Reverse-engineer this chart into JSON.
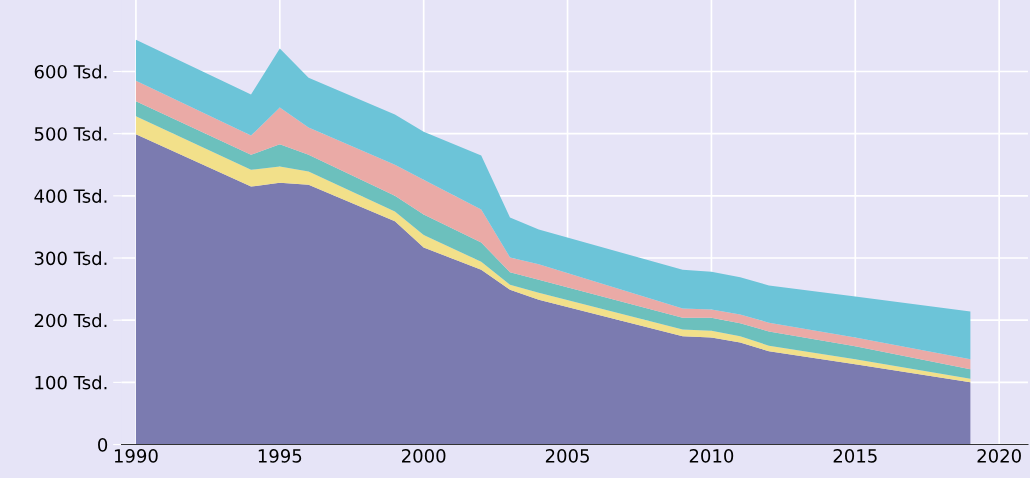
{
  "chart_data": {
    "type": "area",
    "stacked": true,
    "x": [
      1990,
      1994,
      1995,
      1996,
      1999,
      2000,
      2002,
      2003,
      2004,
      2009,
      2010,
      2011,
      2012,
      2015,
      2019
    ],
    "series": [
      {
        "color": "#7b7bb0",
        "values": [
          499,
          415,
          421,
          418,
          359,
          317,
          281,
          249,
          233,
          174,
          172,
          164,
          150,
          129,
          100
        ]
      },
      {
        "color": "#f2e08a",
        "values": [
          29,
          27,
          26,
          21,
          16,
          20,
          13,
          8,
          11,
          11,
          11,
          10,
          9,
          8,
          6
        ]
      },
      {
        "color": "#6cc0bd",
        "values": [
          24,
          24,
          36,
          27,
          25,
          33,
          31,
          20,
          21,
          19,
          21,
          21,
          23,
          21,
          15
        ]
      },
      {
        "color": "#eaaaa6",
        "values": [
          33,
          31,
          59,
          44,
          50,
          56,
          53,
          24,
          25,
          15,
          13,
          14,
          14,
          14,
          16
        ]
      },
      {
        "color": "#6cc4d8",
        "values": [
          66,
          66,
          95,
          80,
          81,
          77,
          87,
          64,
          56,
          62,
          61,
          60,
          60,
          66,
          77
        ]
      }
    ],
    "xlim": [
      1989.5,
      2021
    ],
    "xticks": [
      1990,
      1995,
      2000,
      2005,
      2010,
      2015,
      2020
    ],
    "ylim": [
      0,
      715
    ],
    "yticks": [
      0,
      {
        "value": 100,
        "label": "100 Tsd."
      },
      {
        "value": 200,
        "label": "200 Tsd."
      },
      {
        "value": 300,
        "label": "300 Tsd."
      },
      {
        "value": 400,
        "label": "400 Tsd."
      },
      {
        "value": 500,
        "label": "500 Tsd."
      },
      {
        "value": 600,
        "label": "600 Tsd."
      }
    ],
    "grid": true,
    "legend": false
  }
}
